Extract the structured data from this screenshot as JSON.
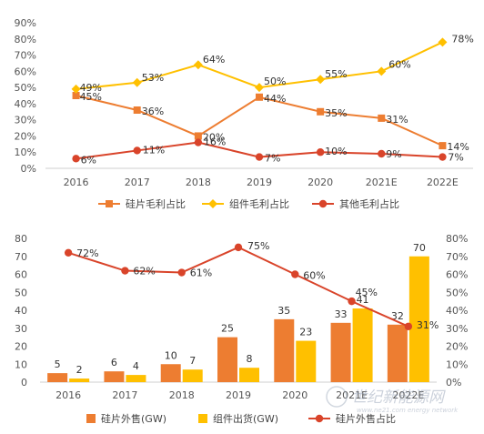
{
  "watermark": "世纪新能源网",
  "watermark_sub": "www.ne21.com energy network",
  "chart_data": [
    {
      "type": "line",
      "categories": [
        "2016",
        "2017",
        "2018",
        "2019",
        "2020",
        "2021E",
        "2022E"
      ],
      "ylim": [
        0,
        90
      ],
      "yticks": [
        "0%",
        "10%",
        "20%",
        "30%",
        "40%",
        "50%",
        "60%",
        "70%",
        "80%",
        "90%"
      ],
      "grid": false,
      "legend_position": "bottom",
      "series": [
        {
          "name": "硅片毛利占比",
          "color": "#ed7d31",
          "marker": "square",
          "values": [
            45,
            36,
            20,
            44,
            35,
            31,
            14
          ],
          "labels": [
            "45%",
            "36%",
            "20%",
            "44%",
            "35%",
            "31%",
            "14%"
          ]
        },
        {
          "name": "组件毛利占比",
          "color": "#ffc000",
          "marker": "diamond",
          "values": [
            49,
            53,
            64,
            50,
            55,
            60,
            78
          ],
          "labels": [
            "49%",
            "53%",
            "64%",
            "50%",
            "55%",
            "60%",
            "78%"
          ]
        },
        {
          "name": "其他毛利占比",
          "color": "#d9442a",
          "marker": "circle",
          "values": [
            6,
            11,
            16,
            7,
            10,
            9,
            7
          ],
          "labels": [
            "6%",
            "11%",
            "16%",
            "7%",
            "10%",
            "9%",
            "7%"
          ]
        }
      ]
    },
    {
      "type": "bar",
      "categories": [
        "2016",
        "2017",
        "2018",
        "2019",
        "2020",
        "2021E",
        "2022E"
      ],
      "ylim": [
        0,
        80
      ],
      "yticks": [
        "0",
        "10",
        "20",
        "30",
        "40",
        "50",
        "60",
        "70",
        "80"
      ],
      "y2lim": [
        0,
        80
      ],
      "y2ticks": [
        "0%",
        "10%",
        "20%",
        "30%",
        "40%",
        "50%",
        "60%",
        "70%",
        "80%"
      ],
      "grid": false,
      "legend_position": "bottom",
      "series": [
        {
          "name": "硅片外售(GW)",
          "kind": "bar",
          "color": "#ed7d31",
          "values": [
            5,
            6,
            10,
            25,
            35,
            33,
            32
          ],
          "labels": [
            "5",
            "6",
            "10",
            "25",
            "35",
            "33",
            "32"
          ]
        },
        {
          "name": "组件出货(GW)",
          "kind": "bar",
          "color": "#ffc000",
          "values": [
            2,
            4,
            7,
            8,
            23,
            41,
            70
          ],
          "labels": [
            "2",
            "4",
            "7",
            "8",
            "23",
            "41",
            "70"
          ]
        },
        {
          "name": "硅片外售占比",
          "kind": "line",
          "axis": "right",
          "color": "#d9442a",
          "marker": "circle",
          "values": [
            72,
            62,
            61,
            75,
            60,
            45,
            31
          ],
          "labels": [
            "72%",
            "62%",
            "61%",
            "75%",
            "60%",
            "45%",
            "31%"
          ]
        }
      ]
    }
  ]
}
